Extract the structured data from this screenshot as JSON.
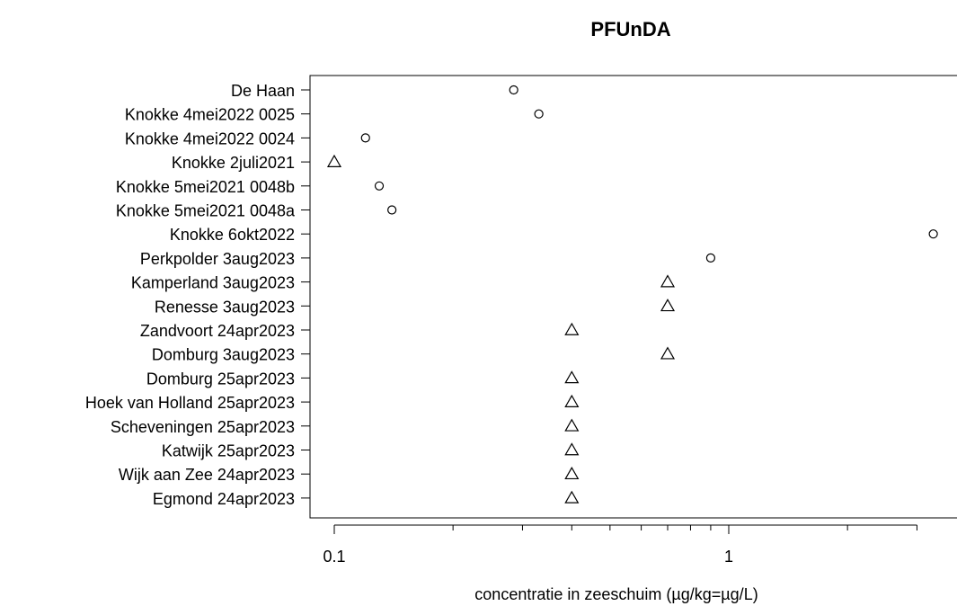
{
  "chart_data": {
    "type": "scatter",
    "title": "PFUnDA",
    "xlabel": "concentratie in zeeschuim (µg/kg=µg/L)",
    "ylabel": "",
    "x_scale": "log",
    "xlim": [
      0.094,
      3.4
    ],
    "x_ticks_labeled": [
      0.1,
      1
    ],
    "x_ticks_minor": [
      0.2,
      0.3,
      0.4,
      0.5,
      0.6,
      0.7,
      0.8,
      0.9,
      2,
      3
    ],
    "x_tick_labels": [
      "0.1",
      "1"
    ],
    "grid": false,
    "legend": "none",
    "categories": [
      "De Haan",
      "Knokke 4mei2022 0025",
      "Knokke 4mei2022 0024",
      "Knokke 2juli2021",
      "Knokke 5mei2021 0048b",
      "Knokke 5mei2021 0048a",
      "Knokke 6okt2022",
      "Perkpolder 3aug2023",
      "Kamperland 3aug2023",
      "Renesse 3aug2023",
      "Zandvoort 24apr2023",
      "Domburg 3aug2023",
      "Domburg 25apr2023",
      "Hoek van Holland 25apr2023",
      "Scheveningen 25apr2023",
      "Katwijk 25apr2023",
      "Wijk aan Zee 24apr2023",
      "Egmond 24apr2023"
    ],
    "values": [
      0.285,
      0.33,
      0.12,
      0.1,
      0.13,
      0.14,
      3.3,
      0.9,
      0.7,
      0.7,
      0.4,
      0.7,
      0.4,
      0.4,
      0.4,
      0.4,
      0.4,
      0.4
    ],
    "markers": [
      "circle",
      "circle",
      "circle",
      "triangle",
      "circle",
      "circle",
      "circle",
      "circle",
      "triangle",
      "triangle",
      "triangle",
      "triangle",
      "triangle",
      "triangle",
      "triangle",
      "triangle",
      "triangle",
      "triangle"
    ],
    "marker_color": "#000000"
  }
}
